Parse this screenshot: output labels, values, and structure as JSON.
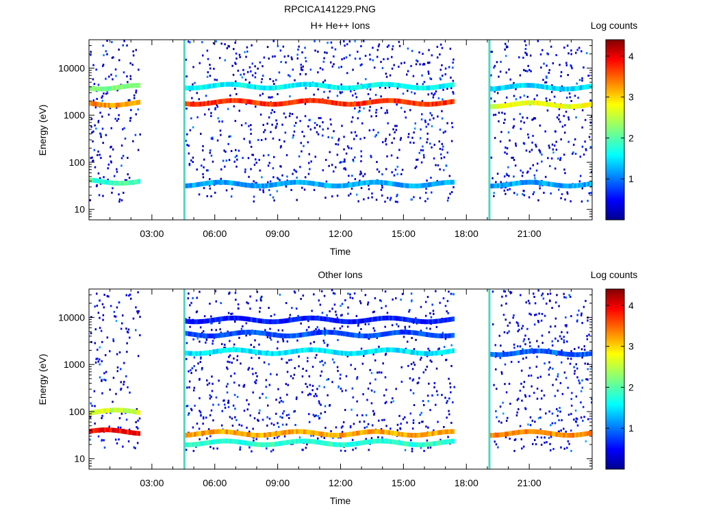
{
  "figure_title": "RPCICA141229.PNG",
  "chart_data": [
    {
      "type": "heatmap",
      "title": "H+ He++ Ions",
      "xlabel": "Time",
      "ylabel": "Energy (eV)",
      "x_ticks": [
        "03:00",
        "06:00",
        "09:00",
        "12:00",
        "15:00",
        "18:00",
        "21:00"
      ],
      "x_tick_hours": [
        3,
        6,
        9,
        12,
        15,
        18,
        21
      ],
      "xlim_hours": [
        0,
        24
      ],
      "y_scale": "log",
      "ylim": [
        6,
        40000
      ],
      "y_ticks": [
        "10",
        "100",
        "1000",
        "10000"
      ],
      "y_tick_values": [
        10,
        100,
        1000,
        10000
      ],
      "colorbar_label": "Log counts",
      "colorbar_ticks": [
        "1",
        "2",
        "3",
        "4"
      ],
      "colorbar_range": [
        0,
        4.4
      ],
      "data_gaps_hours": [
        [
          2.4,
          4.55
        ],
        [
          17.4,
          19.1
        ]
      ],
      "vertical_markers_hours": [
        4.55,
        19.1
      ],
      "bands": [
        {
          "segment": "before 02:24",
          "energy_eV": 1800,
          "log_counts": 3.3
        },
        {
          "segment": "before 02:24",
          "energy_eV": 4000,
          "log_counts": 2.2
        },
        {
          "segment": "before 02:24",
          "energy_eV": 40,
          "log_counts": 1.9
        },
        {
          "segment": "04:33-17:24",
          "energy_eV": 1900,
          "log_counts": 3.7
        },
        {
          "segment": "04:33-17:24",
          "energy_eV": 4200,
          "log_counts": 1.6
        },
        {
          "segment": "04:33-17:24",
          "energy_eV": 35,
          "log_counts": 1.2
        },
        {
          "segment": "after 19:06",
          "energy_eV": 1700,
          "log_counts": 2.7
        },
        {
          "segment": "after 19:06",
          "energy_eV": 4000,
          "log_counts": 1.4
        },
        {
          "segment": "after 19:06",
          "energy_eV": 35,
          "log_counts": 1.2
        }
      ]
    },
    {
      "type": "heatmap",
      "title": "Other Ions",
      "xlabel": "Time",
      "ylabel": "Energy (eV)",
      "x_ticks": [
        "03:00",
        "06:00",
        "09:00",
        "12:00",
        "15:00",
        "18:00",
        "21:00"
      ],
      "x_tick_hours": [
        3,
        6,
        9,
        12,
        15,
        18,
        21
      ],
      "xlim_hours": [
        0,
        24
      ],
      "y_scale": "log",
      "ylim": [
        6,
        40000
      ],
      "y_ticks": [
        "10",
        "100",
        "1000",
        "10000"
      ],
      "y_tick_values": [
        10,
        100,
        1000,
        10000
      ],
      "colorbar_label": "Log counts",
      "colorbar_ticks": [
        "1",
        "2",
        "3",
        "4"
      ],
      "colorbar_range": [
        0,
        4.4
      ],
      "data_gaps_hours": [
        [
          2.4,
          4.55
        ],
        [
          17.4,
          19.1
        ]
      ],
      "vertical_markers_hours": [
        4.55,
        19.1
      ],
      "bands": [
        {
          "segment": "before 02:24",
          "energy_eV": 38,
          "log_counts": 3.9
        },
        {
          "segment": "before 02:24",
          "energy_eV": 100,
          "log_counts": 2.6
        },
        {
          "segment": "04:33-17:24",
          "energy_eV": 35,
          "log_counts": 3.2
        },
        {
          "segment": "04:33-17:24",
          "energy_eV": 22,
          "log_counts": 1.8
        },
        {
          "segment": "04:33-17:24",
          "energy_eV": 1900,
          "log_counts": 1.5
        },
        {
          "segment": "04:33-17:24",
          "energy_eV": 4500,
          "log_counts": 0.8
        },
        {
          "segment": "04:33-17:24",
          "energy_eV": 9000,
          "log_counts": 0.6
        },
        {
          "segment": "after 19:06",
          "energy_eV": 35,
          "log_counts": 3.3
        },
        {
          "segment": "after 19:06",
          "energy_eV": 1800,
          "log_counts": 0.9
        }
      ]
    }
  ]
}
